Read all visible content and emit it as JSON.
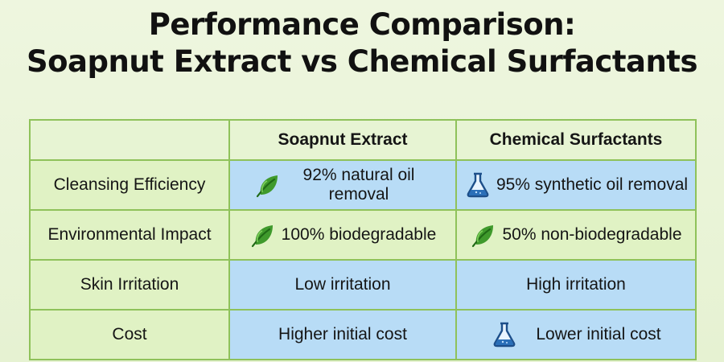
{
  "title": {
    "line1": "Performance Comparison:",
    "line2": "Soapnut Extract vs Chemical Surfactants"
  },
  "table": {
    "columns": [
      "",
      "Soapnut Extract",
      "Chemical Surfactants"
    ],
    "rows": [
      {
        "label": "Cleansing Efficiency",
        "soapnut": {
          "text": "92% natural oil removal",
          "icon": "leaf-icon"
        },
        "chemical": {
          "text": "95% synthetic oil removal",
          "icon": "flask-icon"
        }
      },
      {
        "label": "Environmental Impact",
        "soapnut": {
          "text": "100% biodegradable",
          "icon": "leaf-icon"
        },
        "chemical": {
          "text": "50% non-biodegradable",
          "icon": "leaf-icon"
        }
      },
      {
        "label": "Skin Irritation",
        "soapnut": {
          "text": "Low irritation"
        },
        "chemical": {
          "text": "High irritation"
        }
      },
      {
        "label": "Cost",
        "soapnut": {
          "text": "Higher initial cost"
        },
        "chemical": {
          "text": "Lower initial cost",
          "icon": "flask-icon"
        }
      }
    ]
  },
  "colors": {
    "green_cell": "#e0f2c4",
    "blue_cell": "#b8dcf6",
    "border": "#8fc25a",
    "leaf": "#3f9a2c",
    "flask": "#2a6fb8"
  }
}
